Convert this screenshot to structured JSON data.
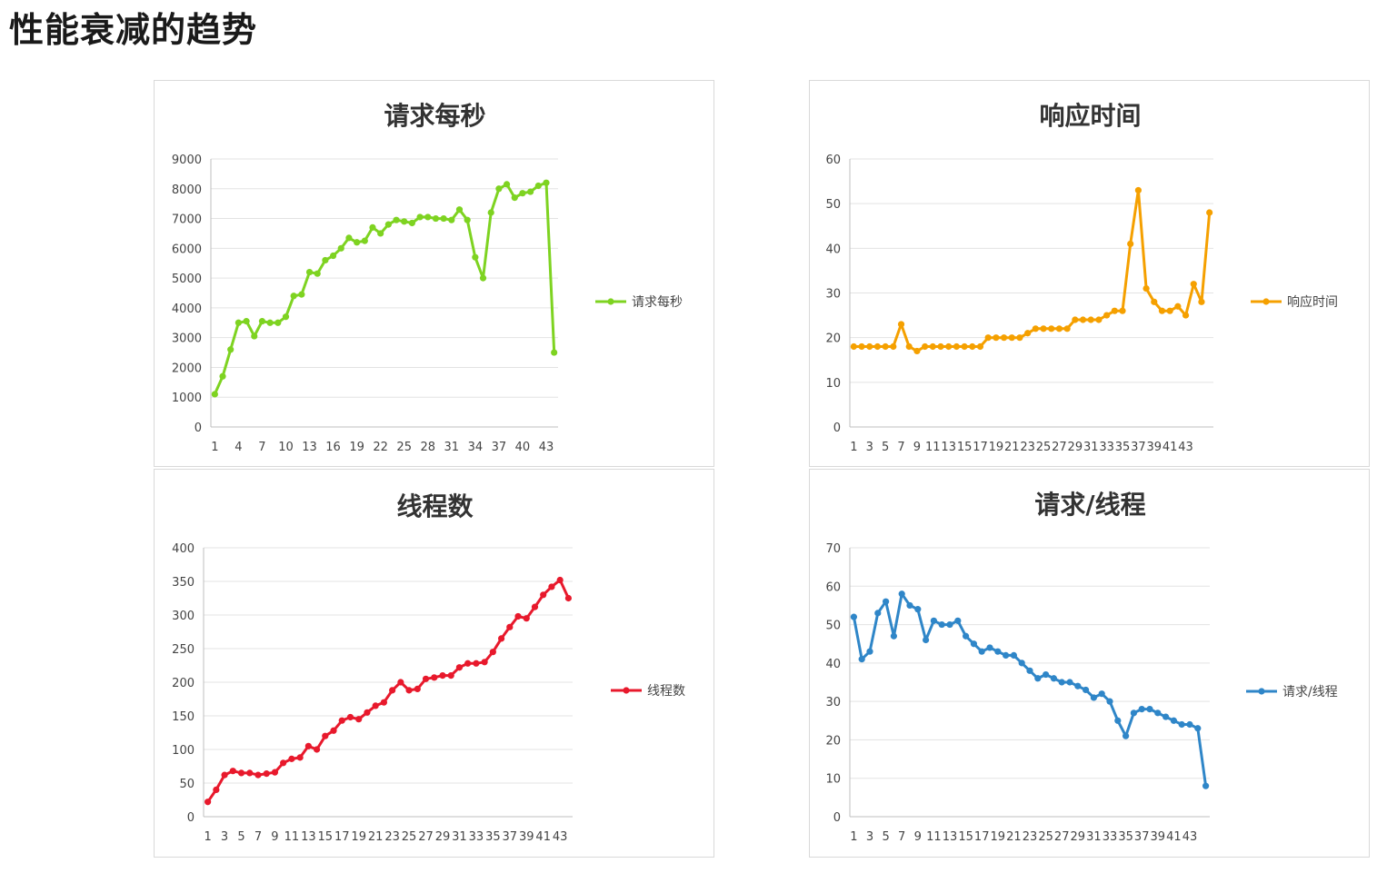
{
  "page": {
    "title": "性能衰减的趋势"
  },
  "chart_data": [
    {
      "id": "rps",
      "type": "line",
      "title": "请求每秒",
      "xlabel": "",
      "ylabel": "",
      "ylim": [
        0,
        9000
      ],
      "yticks": [
        0,
        1000,
        2000,
        3000,
        4000,
        5000,
        6000,
        7000,
        8000,
        9000
      ],
      "xtick_labels": [
        "1",
        "4",
        "7",
        "10",
        "13",
        "16",
        "19",
        "22",
        "25",
        "28",
        "31",
        "34",
        "37",
        "40",
        "43"
      ],
      "xtick_step": 3,
      "grid": true,
      "legend_position": "right",
      "color": "#7ed321",
      "series": [
        {
          "name": "请求每秒",
          "values": [
            1100,
            1700,
            2600,
            3500,
            3550,
            3050,
            3550,
            3500,
            3500,
            3700,
            4400,
            4450,
            5200,
            5150,
            5600,
            5750,
            6000,
            6350,
            6200,
            6250,
            6700,
            6500,
            6800,
            6950,
            6900,
            6850,
            7050,
            7050,
            7000,
            7000,
            6950,
            7300,
            6950,
            5700,
            5000,
            7200,
            8000,
            8150,
            7700,
            7850,
            7900,
            8100,
            8200,
            2500
          ]
        }
      ]
    },
    {
      "id": "resp",
      "type": "line",
      "title": "响应时间",
      "xlabel": "",
      "ylabel": "",
      "ylim": [
        0,
        60
      ],
      "yticks": [
        0,
        10,
        20,
        30,
        40,
        50,
        60
      ],
      "xtick_labels": [
        "1",
        "3",
        "5",
        "7",
        "9",
        "11",
        "13",
        "15",
        "17",
        "19",
        "21",
        "23",
        "25",
        "27",
        "29",
        "31",
        "33",
        "35",
        "37",
        "39",
        "41",
        "43"
      ],
      "xtick_step": 2,
      "grid": true,
      "legend_position": "right",
      "color": "#f5a000",
      "series": [
        {
          "name": "响应时间",
          "values": [
            18,
            18,
            18,
            18,
            18,
            18,
            23,
            18,
            17,
            18,
            18,
            18,
            18,
            18,
            18,
            18,
            18,
            20,
            20,
            20,
            20,
            20,
            21,
            22,
            22,
            22,
            22,
            22,
            24,
            24,
            24,
            24,
            25,
            26,
            26,
            41,
            53,
            31,
            28,
            26,
            26,
            27,
            25,
            32,
            28,
            48
          ]
        }
      ]
    },
    {
      "id": "threads",
      "type": "line",
      "title": "线程数",
      "xlabel": "",
      "ylabel": "",
      "ylim": [
        0,
        400
      ],
      "yticks": [
        0,
        50,
        100,
        150,
        200,
        250,
        300,
        350,
        400
      ],
      "xtick_labels": [
        "1",
        "3",
        "5",
        "7",
        "9",
        "11",
        "13",
        "15",
        "17",
        "19",
        "21",
        "23",
        "25",
        "27",
        "29",
        "31",
        "33",
        "35",
        "37",
        "39",
        "41",
        "43"
      ],
      "xtick_step": 2,
      "grid": true,
      "legend_position": "right",
      "color": "#e8192c",
      "series": [
        {
          "name": "线程数",
          "values": [
            22,
            40,
            62,
            68,
            65,
            65,
            62,
            64,
            66,
            80,
            86,
            88,
            105,
            100,
            120,
            128,
            143,
            148,
            145,
            155,
            165,
            170,
            188,
            200,
            188,
            190,
            205,
            207,
            210,
            210,
            222,
            228,
            228,
            230,
            245,
            265,
            282,
            298,
            295,
            312,
            330,
            342,
            352,
            325
          ]
        }
      ]
    },
    {
      "id": "rpt",
      "type": "line",
      "title": "请求/线程",
      "xlabel": "",
      "ylabel": "",
      "ylim": [
        0,
        70
      ],
      "yticks": [
        0,
        10,
        20,
        30,
        40,
        50,
        60,
        70
      ],
      "xtick_labels": [
        "1",
        "3",
        "5",
        "7",
        "9",
        "11",
        "13",
        "15",
        "17",
        "19",
        "21",
        "23",
        "25",
        "27",
        "29",
        "31",
        "33",
        "35",
        "37",
        "39",
        "41",
        "43"
      ],
      "xtick_step": 2,
      "grid": true,
      "legend_position": "right",
      "color": "#2f86c8",
      "series": [
        {
          "name": "请求/线程",
          "values": [
            52,
            41,
            43,
            53,
            56,
            47,
            58,
            55,
            54,
            46,
            51,
            50,
            50,
            51,
            47,
            45,
            43,
            44,
            43,
            42,
            42,
            40,
            38,
            36,
            37,
            36,
            35,
            35,
            34,
            33,
            31,
            32,
            30,
            25,
            21,
            27,
            28,
            28,
            27,
            26,
            25,
            24,
            24,
            23,
            8
          ]
        }
      ]
    }
  ]
}
